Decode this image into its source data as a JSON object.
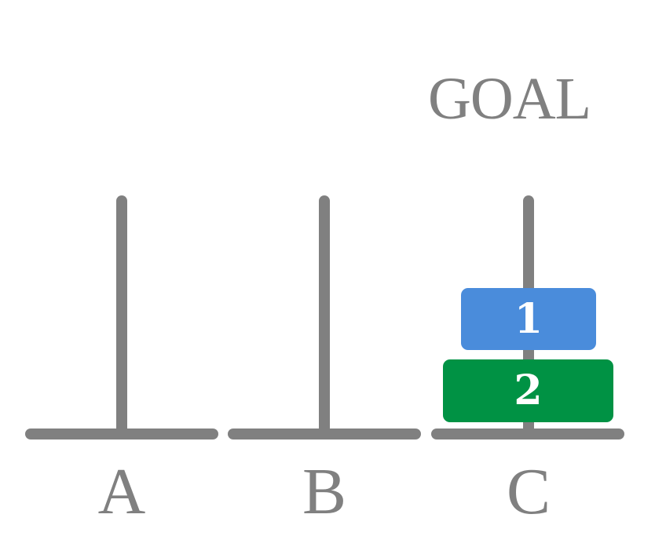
{
  "title": "GOAL",
  "pegs": [
    {
      "label": "A",
      "disks": []
    },
    {
      "label": "B",
      "disks": []
    },
    {
      "label": "C",
      "disks": [
        {
          "label": "1",
          "color": "#4a8cdb"
        },
        {
          "label": "2",
          "color": "#009244"
        }
      ]
    }
  ],
  "colors": {
    "structure": "#808080",
    "text": "#808080",
    "background": "#ffffff"
  }
}
